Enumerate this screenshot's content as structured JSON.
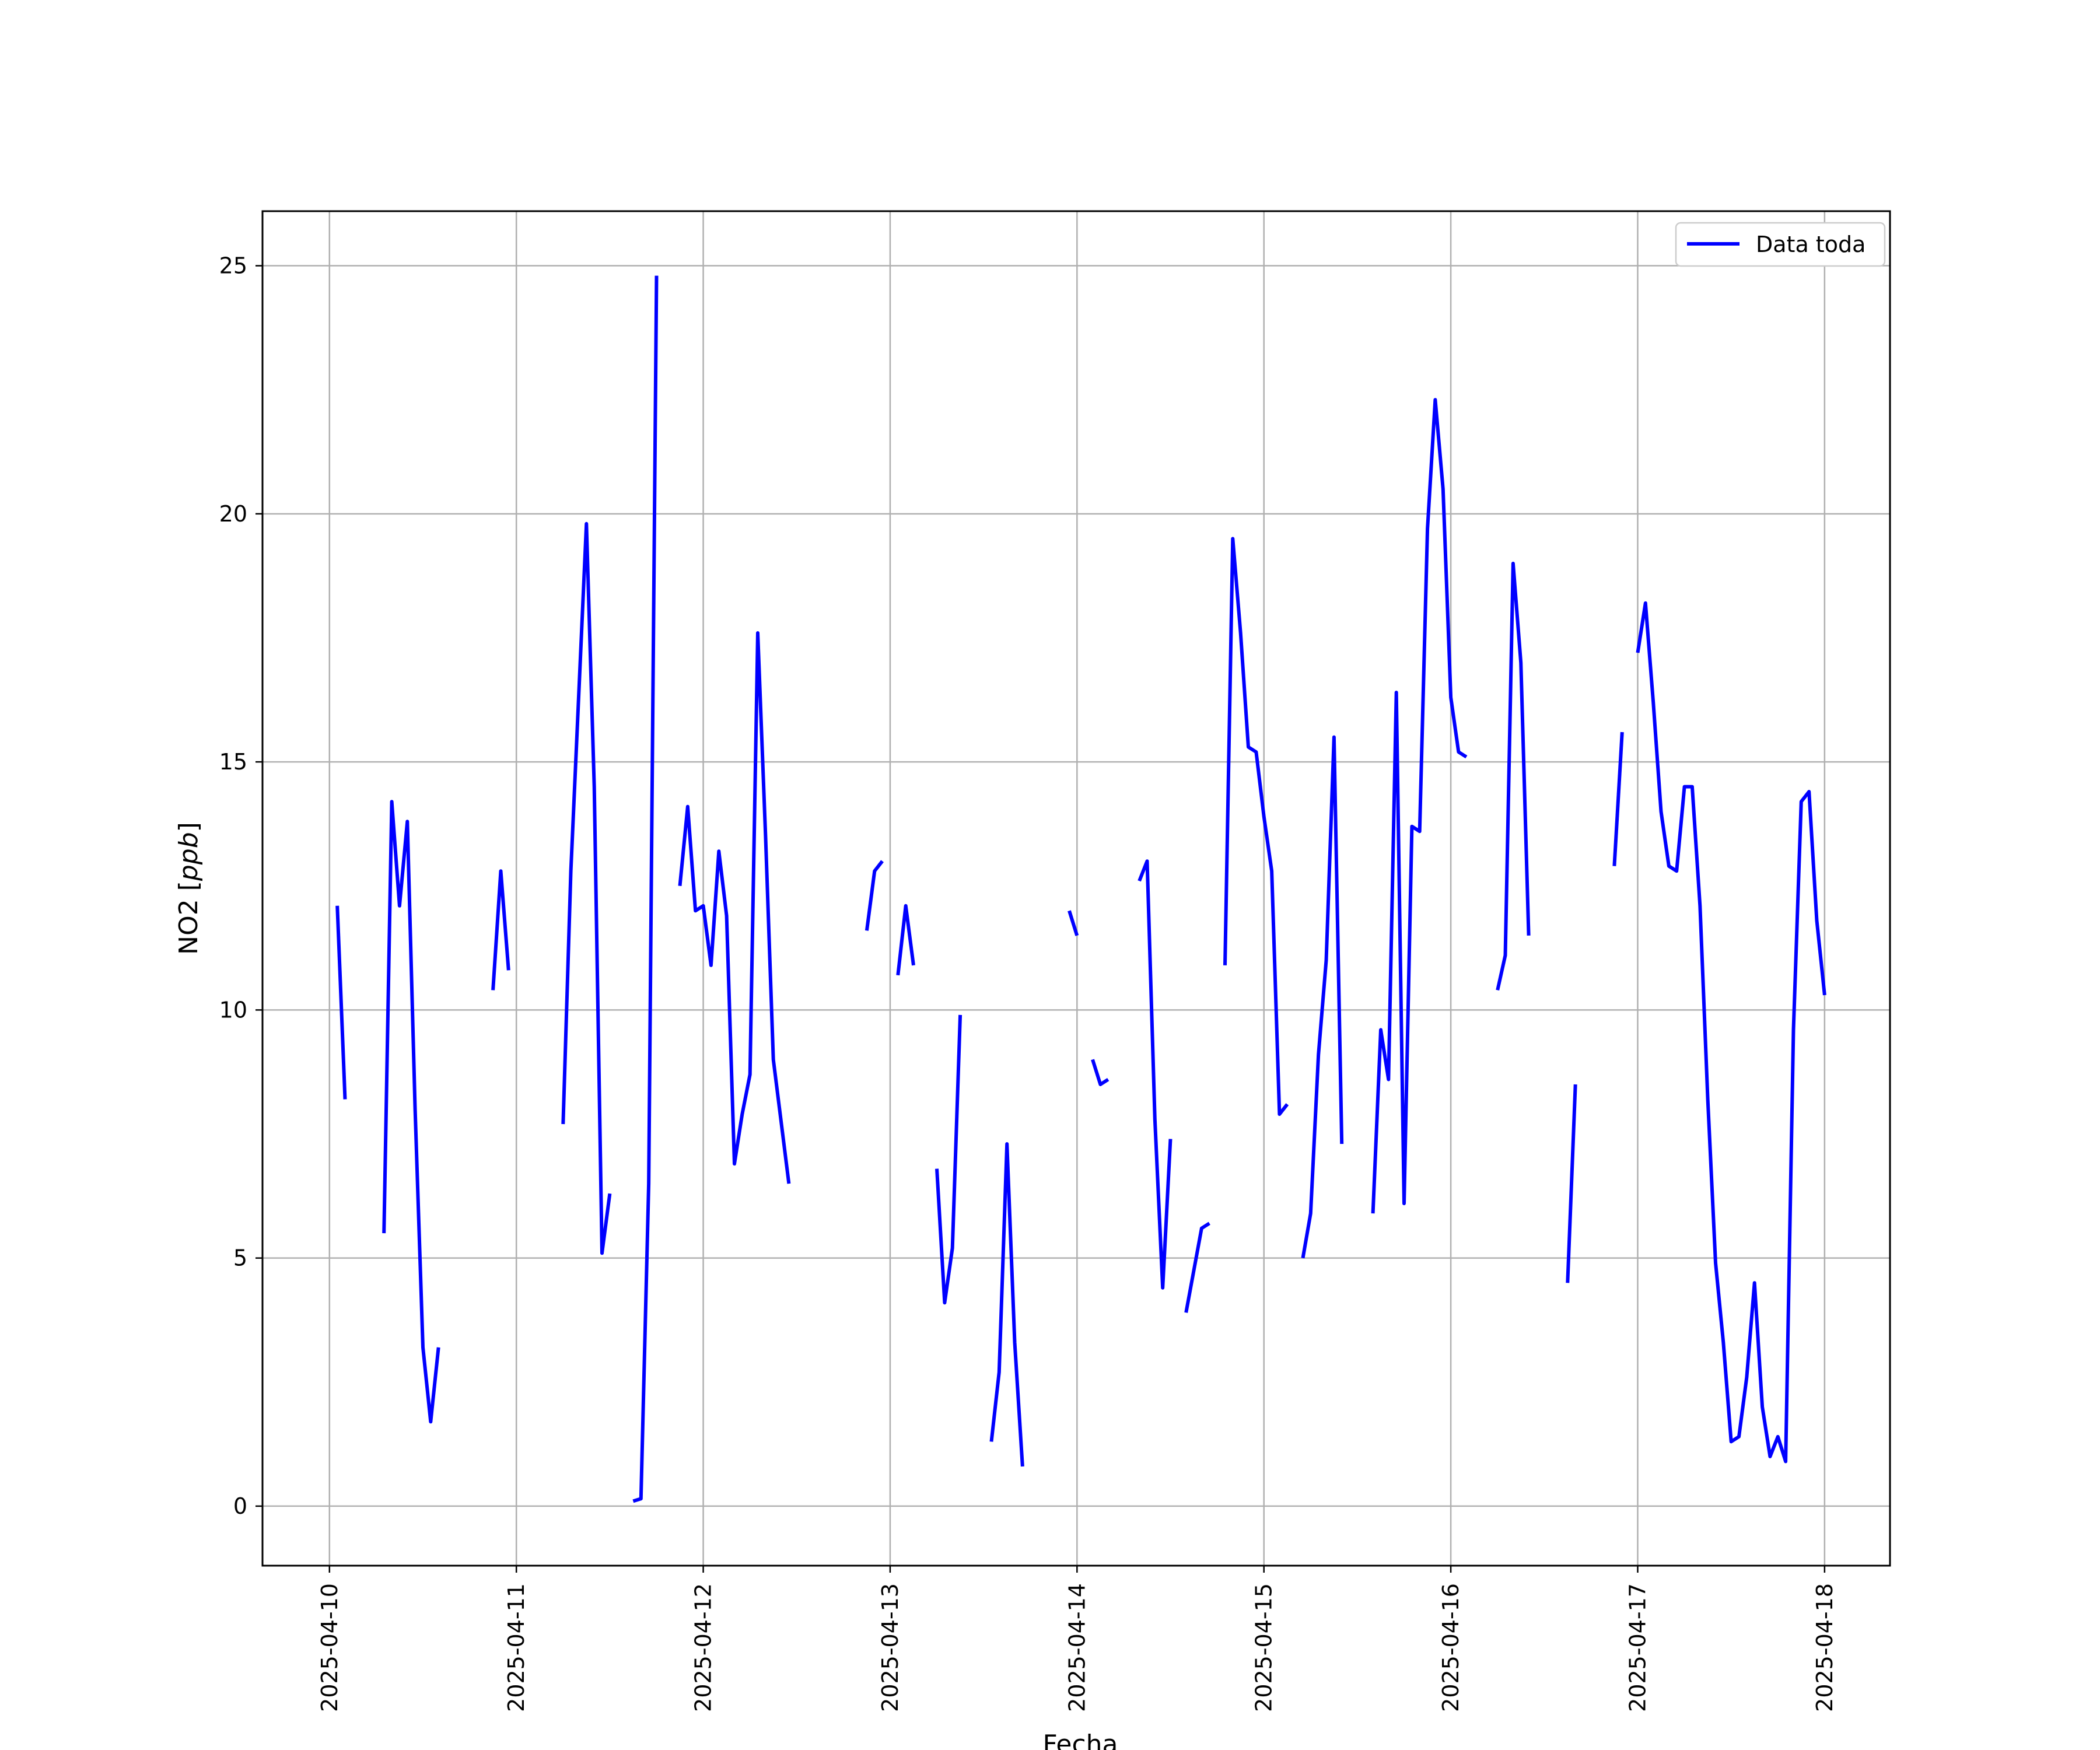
{
  "chart_data": {
    "type": "line",
    "xlabel": "Fecha",
    "ylabel_main": "NO2 [",
    "ylabel_unit": "ppb",
    "ylabel_end": "]",
    "xlim": [
      "2025-04-09T15:24",
      "2025-04-18T08:24"
    ],
    "ylim": [
      -1.2,
      26.1
    ],
    "x_ticks": [
      "2025-04-10",
      "2025-04-11",
      "2025-04-12",
      "2025-04-13",
      "2025-04-14",
      "2025-04-15",
      "2025-04-16",
      "2025-04-17",
      "2025-04-18"
    ],
    "y_ticks": [
      0,
      5,
      10,
      15,
      20,
      25
    ],
    "grid": true,
    "legend": {
      "position": "top-right",
      "label": "Data toda"
    },
    "series": [
      {
        "name": "Data toda",
        "color": "#0000ff",
        "segments": [
          [
            [
              "2025-04-10T01:00",
              12.1
            ],
            [
              "2025-04-10T02:00",
              8.2
            ]
          ],
          [
            [
              "2025-04-10T07:00",
              5.5
            ],
            [
              "2025-04-10T08:00",
              14.2
            ],
            [
              "2025-04-10T09:00",
              12.1
            ],
            [
              "2025-04-10T10:00",
              13.8
            ],
            [
              "2025-04-10T11:00",
              8.0
            ],
            [
              "2025-04-10T12:00",
              3.2
            ],
            [
              "2025-04-10T13:00",
              1.7
            ],
            [
              "2025-04-10T14:00",
              3.2
            ]
          ],
          [
            [
              "2025-04-10T21:00",
              10.4
            ],
            [
              "2025-04-10T22:00",
              12.8
            ],
            [
              "2025-04-10T23:00",
              10.8
            ]
          ],
          [
            [
              "2025-04-11T06:00",
              7.7
            ],
            [
              "2025-04-11T07:00",
              12.8
            ],
            [
              "2025-04-11T09:00",
              19.8
            ],
            [
              "2025-04-11T10:00",
              14.5
            ],
            [
              "2025-04-11T11:00",
              5.1
            ],
            [
              "2025-04-11T12:00",
              6.3
            ]
          ],
          [
            [
              "2025-04-11T15:00",
              0.1
            ],
            [
              "2025-04-11T16:00",
              0.15
            ],
            [
              "2025-04-11T17:00",
              6.5
            ],
            [
              "2025-04-11T18:00",
              24.8
            ]
          ],
          [
            [
              "2025-04-11T21:00",
              12.5
            ],
            [
              "2025-04-11T22:00",
              14.1
            ],
            [
              "2025-04-11T23:00",
              12.0
            ],
            [
              "2025-04-12T00:00",
              12.1
            ],
            [
              "2025-04-12T01:00",
              10.9
            ],
            [
              "2025-04-12T02:00",
              13.2
            ],
            [
              "2025-04-12T03:00",
              11.9
            ],
            [
              "2025-04-12T04:00",
              6.9
            ],
            [
              "2025-04-12T05:00",
              7.9
            ],
            [
              "2025-04-12T06:00",
              8.7
            ],
            [
              "2025-04-12T07:00",
              17.6
            ],
            [
              "2025-04-12T08:00",
              13.5
            ],
            [
              "2025-04-12T09:00",
              9.0
            ],
            [
              "2025-04-12T11:00",
              6.5
            ]
          ],
          [
            [
              "2025-04-12T21:00",
              11.6
            ],
            [
              "2025-04-12T22:00",
              12.8
            ],
            [
              "2025-04-12T23:00",
              13.0
            ]
          ],
          [
            [
              "2025-04-13T01:00",
              10.7
            ],
            [
              "2025-04-13T02:00",
              12.1
            ],
            [
              "2025-04-13T03:00",
              10.9
            ]
          ],
          [
            [
              "2025-04-13T06:00",
              6.8
            ],
            [
              "2025-04-13T07:00",
              4.1
            ],
            [
              "2025-04-13T08:00",
              5.2
            ],
            [
              "2025-04-13T09:00",
              9.9
            ]
          ],
          [
            [
              "2025-04-13T13:00",
              1.3
            ],
            [
              "2025-04-13T14:00",
              2.7
            ],
            [
              "2025-04-13T15:00",
              7.3
            ],
            [
              "2025-04-13T16:00",
              3.3
            ],
            [
              "2025-04-13T17:00",
              0.8
            ]
          ],
          [
            [
              "2025-04-13T23:00",
              12.0
            ],
            [
              "2025-04-14T00:00",
              11.5
            ]
          ],
          [
            [
              "2025-04-14T02:00",
              9.0
            ],
            [
              "2025-04-14T03:00",
              8.5
            ],
            [
              "2025-04-14T04:00",
              8.6
            ]
          ],
          [
            [
              "2025-04-14T08:00",
              12.6
            ],
            [
              "2025-04-14T09:00",
              13.0
            ],
            [
              "2025-04-14T10:00",
              7.8
            ],
            [
              "2025-04-14T11:00",
              4.4
            ],
            [
              "2025-04-14T12:00",
              7.4
            ]
          ],
          [
            [
              "2025-04-14T14:00",
              3.9
            ],
            [
              "2025-04-14T16:00",
              5.6
            ],
            [
              "2025-04-14T17:00",
              5.7
            ]
          ],
          [
            [
              "2025-04-14T19:00",
              10.9
            ],
            [
              "2025-04-14T20:00",
              19.5
            ],
            [
              "2025-04-14T21:00",
              17.6
            ],
            [
              "2025-04-14T22:00",
              15.3
            ],
            [
              "2025-04-14T23:00",
              15.2
            ],
            [
              "2025-04-15T00:00",
              13.9
            ],
            [
              "2025-04-15T01:00",
              12.8
            ],
            [
              "2025-04-15T02:00",
              7.9
            ],
            [
              "2025-04-15T03:00",
              8.1
            ]
          ],
          [
            [
              "2025-04-15T05:00",
              5.0
            ],
            [
              "2025-04-15T06:00",
              5.9
            ],
            [
              "2025-04-15T07:00",
              9.1
            ],
            [
              "2025-04-15T08:00",
              11.0
            ],
            [
              "2025-04-15T09:00",
              15.5
            ],
            [
              "2025-04-15T10:00",
              7.3
            ]
          ],
          [
            [
              "2025-04-15T14:00",
              5.9
            ],
            [
              "2025-04-15T15:00",
              9.6
            ],
            [
              "2025-04-15T16:00",
              8.6
            ],
            [
              "2025-04-15T17:00",
              16.4
            ],
            [
              "2025-04-15T18:00",
              6.1
            ],
            [
              "2025-04-15T19:00",
              13.7
            ],
            [
              "2025-04-15T20:00",
              13.6
            ],
            [
              "2025-04-15T21:00",
              19.7
            ],
            [
              "2025-04-15T22:00",
              22.3
            ],
            [
              "2025-04-15T23:00",
              20.5
            ],
            [
              "2025-04-16T00:00",
              16.3
            ],
            [
              "2025-04-16T01:00",
              15.2
            ],
            [
              "2025-04-16T02:00",
              15.1
            ]
          ],
          [
            [
              "2025-04-16T06:00",
              10.4
            ],
            [
              "2025-04-16T07:00",
              11.1
            ],
            [
              "2025-04-16T08:00",
              19.0
            ],
            [
              "2025-04-16T09:00",
              17.0
            ],
            [
              "2025-04-16T10:00",
              11.5
            ]
          ],
          [
            [
              "2025-04-16T15:00",
              4.5
            ],
            [
              "2025-04-16T16:00",
              8.5
            ]
          ],
          [
            [
              "2025-04-16T21:00",
              12.9
            ],
            [
              "2025-04-16T22:00",
              15.6
            ]
          ],
          [
            [
              "2025-04-17T00:00",
              17.2
            ],
            [
              "2025-04-17T01:00",
              18.2
            ],
            [
              "2025-04-17T02:00",
              16.2
            ],
            [
              "2025-04-17T03:00",
              14.0
            ],
            [
              "2025-04-17T04:00",
              12.9
            ],
            [
              "2025-04-17T05:00",
              12.8
            ],
            [
              "2025-04-17T06:00",
              14.5
            ],
            [
              "2025-04-17T07:00",
              14.5
            ],
            [
              "2025-04-17T08:00",
              12.1
            ],
            [
              "2025-04-17T09:00",
              8.2
            ],
            [
              "2025-04-17T10:00",
              4.9
            ],
            [
              "2025-04-17T11:00",
              3.3
            ],
            [
              "2025-04-17T12:00",
              1.3
            ],
            [
              "2025-04-17T13:00",
              1.4
            ],
            [
              "2025-04-17T14:00",
              2.6
            ],
            [
              "2025-04-17T15:00",
              4.5
            ],
            [
              "2025-04-17T16:00",
              2.0
            ],
            [
              "2025-04-17T17:00",
              1.0
            ],
            [
              "2025-04-17T18:00",
              1.4
            ],
            [
              "2025-04-17T19:00",
              0.9
            ],
            [
              "2025-04-17T20:00",
              9.6
            ],
            [
              "2025-04-17T21:00",
              14.2
            ],
            [
              "2025-04-17T22:00",
              14.4
            ],
            [
              "2025-04-17T23:00",
              11.8
            ],
            [
              "2025-04-18T00:00",
              10.3
            ]
          ]
        ]
      }
    ]
  }
}
